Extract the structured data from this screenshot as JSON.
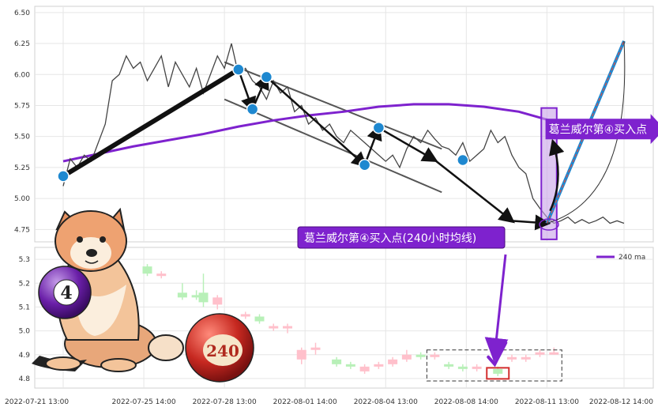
{
  "chart_data": [
    {
      "type": "line",
      "panel": "top",
      "ylim": [
        4.65,
        6.55
      ],
      "yticks": [
        4.75,
        5.0,
        5.25,
        5.5,
        5.75,
        6.0,
        6.25,
        6.5
      ],
      "ytick_labels": [
        "4.75",
        "5.00",
        "5.25",
        "5.50",
        "5.75",
        "6.00",
        "6.25",
        "6.50"
      ],
      "grid": true,
      "series": [
        {
          "name": "price",
          "color": "#444444",
          "x": [
            0,
            1,
            2,
            3,
            4,
            5,
            6,
            7,
            8,
            9,
            10,
            11,
            12,
            13,
            14,
            15,
            16,
            17,
            18,
            19,
            20,
            21,
            22,
            23,
            24,
            25,
            26,
            27,
            28,
            29,
            30,
            31,
            32,
            33,
            34,
            35,
            36,
            37,
            38,
            39,
            40,
            41,
            42,
            43,
            44,
            45,
            46,
            47,
            48,
            49,
            50,
            51,
            52,
            53,
            54,
            55,
            56,
            57,
            58,
            59,
            60,
            61,
            62,
            63,
            64,
            65,
            66,
            67,
            68,
            69,
            70,
            71,
            72,
            73,
            74,
            75,
            76,
            77,
            78,
            79,
            80
          ],
          "y": [
            5.1,
            5.32,
            5.25,
            5.35,
            5.3,
            5.45,
            5.6,
            5.95,
            6.0,
            6.15,
            6.05,
            6.1,
            5.95,
            6.05,
            6.15,
            5.9,
            6.1,
            6.0,
            5.9,
            6.05,
            5.85,
            6.0,
            6.15,
            6.05,
            6.25,
            6.0,
            6.05,
            5.95,
            5.9,
            5.8,
            5.95,
            5.85,
            5.9,
            5.7,
            5.75,
            5.6,
            5.65,
            5.55,
            5.6,
            5.5,
            5.45,
            5.55,
            5.5,
            5.45,
            5.4,
            5.35,
            5.3,
            5.35,
            5.25,
            5.4,
            5.5,
            5.45,
            5.55,
            5.48,
            5.42,
            5.4,
            5.35,
            5.45,
            5.3,
            5.35,
            5.4,
            5.55,
            5.45,
            5.5,
            5.35,
            5.25,
            5.2,
            5.0,
            4.92,
            4.85,
            4.8,
            4.82,
            4.85,
            4.8,
            4.83,
            4.8,
            4.82,
            4.85,
            4.8,
            4.82,
            4.8
          ]
        },
        {
          "name": "240 ma",
          "color": "#7e22ce",
          "x": [
            0,
            5,
            10,
            15,
            20,
            25,
            30,
            35,
            40,
            45,
            50,
            55,
            60,
            65,
            70
          ],
          "y": [
            5.3,
            5.36,
            5.42,
            5.47,
            5.52,
            5.58,
            5.63,
            5.67,
            5.7,
            5.74,
            5.76,
            5.76,
            5.74,
            5.7,
            5.62
          ]
        }
      ],
      "annotations": {
        "trend_up_points": [
          [
            0,
            5.18
          ],
          [
            25,
            6.04
          ]
        ],
        "zigzag_points": [
          [
            25,
            6.04
          ],
          [
            27,
            5.72
          ],
          [
            29,
            5.98
          ],
          [
            43,
            5.27
          ],
          [
            45,
            5.57
          ],
          [
            53,
            5.31
          ],
          [
            64,
            4.82
          ],
          [
            69,
            4.8
          ]
        ],
        "forecast_line": [
          [
            69,
            4.8
          ],
          [
            80,
            6.27
          ]
        ],
        "channel_upper": [
          [
            23,
            6.1
          ],
          [
            54,
            5.4
          ]
        ],
        "channel_lower": [
          [
            23,
            5.8
          ],
          [
            54,
            5.05
          ]
        ],
        "callout_label": "葛兰威尔第④买入点"
      }
    },
    {
      "type": "candlestick",
      "panel": "bottom",
      "ylim": [
        4.76,
        5.35
      ],
      "yticks": [
        4.8,
        4.9,
        5.0,
        5.1,
        5.2,
        5.3
      ],
      "ytick_labels": [
        "4.8",
        "4.9",
        "5.0",
        "5.1",
        "5.2",
        "5.3"
      ],
      "grid": true,
      "candles": [
        {
          "x": 12,
          "o": 5.27,
          "c": 5.24,
          "h": 5.28,
          "l": 5.23
        },
        {
          "x": 14,
          "o": 5.23,
          "c": 5.24,
          "h": 5.25,
          "l": 5.22
        },
        {
          "x": 17,
          "o": 5.16,
          "c": 5.14,
          "h": 5.2,
          "l": 5.13
        },
        {
          "x": 19,
          "o": 5.15,
          "c": 5.14,
          "h": 5.17,
          "l": 5.13
        },
        {
          "x": 20,
          "o": 5.16,
          "c": 5.12,
          "h": 5.24,
          "l": 5.1
        },
        {
          "x": 22,
          "o": 5.11,
          "c": 5.14,
          "h": 5.15,
          "l": 5.09
        },
        {
          "x": 26,
          "o": 5.06,
          "c": 5.07,
          "h": 5.08,
          "l": 5.05
        },
        {
          "x": 28,
          "o": 5.06,
          "c": 5.04,
          "h": 5.07,
          "l": 5.03
        },
        {
          "x": 30,
          "o": 5.02,
          "c": 5.02,
          "h": 5.03,
          "l": 5.0
        },
        {
          "x": 32,
          "o": 5.01,
          "c": 5.02,
          "h": 5.03,
          "l": 4.99
        },
        {
          "x": 34,
          "o": 4.88,
          "c": 4.92,
          "h": 4.93,
          "l": 4.86
        },
        {
          "x": 36,
          "o": 4.92,
          "c": 4.93,
          "h": 4.95,
          "l": 4.9
        },
        {
          "x": 39,
          "o": 4.88,
          "c": 4.86,
          "h": 4.89,
          "l": 4.85
        },
        {
          "x": 41,
          "o": 4.86,
          "c": 4.85,
          "h": 4.87,
          "l": 4.84
        },
        {
          "x": 43,
          "o": 4.83,
          "c": 4.85,
          "h": 4.86,
          "l": 4.82
        },
        {
          "x": 45,
          "o": 4.85,
          "c": 4.86,
          "h": 4.87,
          "l": 4.84
        },
        {
          "x": 47,
          "o": 4.86,
          "c": 4.88,
          "h": 4.89,
          "l": 4.85
        },
        {
          "x": 49,
          "o": 4.88,
          "c": 4.9,
          "h": 4.92,
          "l": 4.87
        },
        {
          "x": 51,
          "o": 4.9,
          "c": 4.89,
          "h": 4.91,
          "l": 4.88
        },
        {
          "x": 53,
          "o": 4.89,
          "c": 4.9,
          "h": 4.91,
          "l": 4.88
        },
        {
          "x": 55,
          "o": 4.86,
          "c": 4.85,
          "h": 4.87,
          "l": 4.84
        },
        {
          "x": 57,
          "o": 4.85,
          "c": 4.84,
          "h": 4.86,
          "l": 4.83
        },
        {
          "x": 59,
          "o": 4.84,
          "c": 4.85,
          "h": 4.86,
          "l": 4.83
        },
        {
          "x": 62,
          "o": 4.84,
          "c": 4.82,
          "h": 4.85,
          "l": 4.81
        },
        {
          "x": 64,
          "o": 4.88,
          "c": 4.89,
          "h": 4.9,
          "l": 4.87
        },
        {
          "x": 66,
          "o": 4.88,
          "c": 4.89,
          "h": 4.9,
          "l": 4.87
        },
        {
          "x": 68,
          "o": 4.9,
          "c": 4.91,
          "h": 4.92,
          "l": 4.89
        },
        {
          "x": 70,
          "o": 4.91,
          "c": 4.91,
          "h": 4.93,
          "l": 4.9
        }
      ],
      "legend": {
        "label": "240 ma",
        "color": "#7e22ce",
        "placement": "top-right"
      },
      "annotations": {
        "callout_label": "葛兰威尔第④买入点(240小时均线)",
        "highlight_box": {
          "x0": 53,
          "x1": 70,
          "y0": 4.79,
          "y1": 4.92
        }
      }
    }
  ],
  "x_axis": {
    "xlim": [
      0,
      80
    ],
    "ticks": [
      0,
      11.5,
      23,
      34.5,
      46,
      57.5,
      69,
      80
    ],
    "tick_labels": [
      "2022-07-21 13:00",
      "2022-07-25 14:00",
      "2022-07-28 13:00",
      "2022-08-01 14:00",
      "2022-08-04 13:00",
      "2022-08-08 14:00",
      "2022-08-11 13:00",
      "2022-08-12 14:00"
    ]
  },
  "illustration": {
    "ball_four_label": "4",
    "ball_240_label": "240"
  },
  "colors": {
    "up_candle": "#ffc0cb",
    "down_candle": "#b8f0b8",
    "ma": "#7e22ce",
    "highlight": "#c8a2e8",
    "marker": "#1e88d0"
  }
}
